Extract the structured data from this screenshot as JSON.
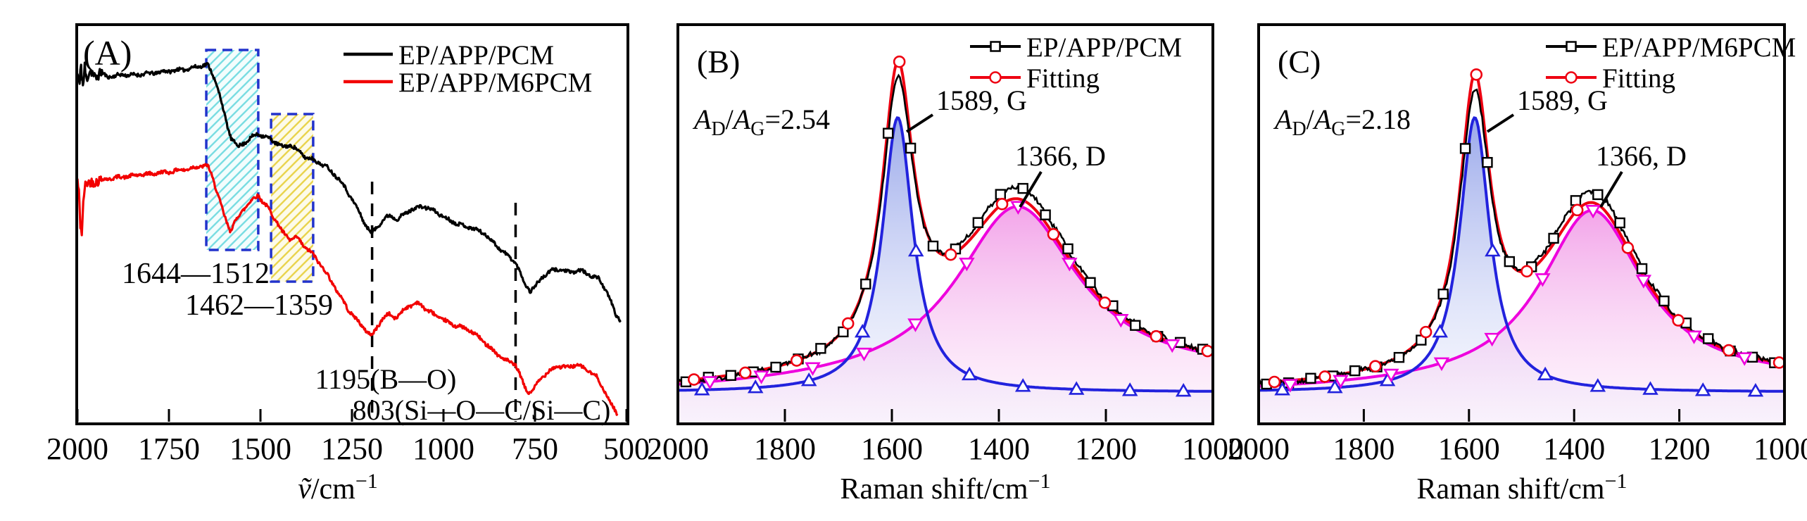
{
  "figure": {
    "description": "Three-panel spectroscopy figure: FTIR spectra (A) and Raman D/G band deconvolution (B, C)",
    "colors": {
      "black_series": "#000000",
      "red_series": "#f20000",
      "fitting_red": "#ee0011",
      "g_band_blue": "#2222dd",
      "d_band_magenta": "#ee00dd",
      "band_box_border": "#2233cc",
      "cyan_hatch": "#7adde2",
      "yellow_hatch": "#e9d44e"
    }
  },
  "chart_data": [
    {
      "panel": "A",
      "panel_label": "(A)",
      "type": "line",
      "x_label_parts": [
        "ṽ",
        "/cm",
        "−1"
      ],
      "x_ticks": [
        "2000",
        "1750",
        "1500",
        "1250",
        "1000",
        "750",
        "500"
      ],
      "x_range": [
        2000,
        500
      ],
      "y_axis": "transmittance, arbitrary units 0-100",
      "legend": [
        {
          "label": "EP/APP/PCM",
          "color": "#000000"
        },
        {
          "label": "EP/APP/M6PCM",
          "color": "#f20000"
        }
      ],
      "annotations": [
        {
          "text": "1644—1512"
        },
        {
          "text": "1462—1359"
        },
        {
          "text": "1195(B—O)"
        },
        {
          "text": "803(Si—O—C/Si—C)"
        }
      ],
      "highlight_bands": [
        {
          "from": 1648,
          "to": 1506,
          "style": "cyan-hatched"
        },
        {
          "from": 1471,
          "to": 1356,
          "style": "yellow-hatched"
        }
      ],
      "dashed_lines": [
        1195,
        803
      ],
      "series": [
        {
          "name": "EP/APP/PCM",
          "color": "#000000",
          "points": [
            [
              2000,
              87.7
            ],
            [
              1994,
              85.0
            ],
            [
              1990,
              90.0
            ],
            [
              1985,
              84.5
            ],
            [
              1980,
              89.0
            ],
            [
              1975,
              86.0
            ],
            [
              1965,
              88.5
            ],
            [
              1950,
              86.8
            ],
            [
              1935,
              88.0
            ],
            [
              1920,
              87.0
            ],
            [
              1900,
              87.1
            ],
            [
              1875,
              87.5
            ],
            [
              1850,
              87.3
            ],
            [
              1825,
              87.6
            ],
            [
              1800,
              87.8
            ],
            [
              1775,
              88.1
            ],
            [
              1750,
              88.4
            ],
            [
              1725,
              88.6
            ],
            [
              1700,
              88.9
            ],
            [
              1680,
              89.3
            ],
            [
              1660,
              89.8
            ],
            [
              1644,
              89.9
            ],
            [
              1630,
              87.5
            ],
            [
              1620,
              85.0
            ],
            [
              1610,
              82.0
            ],
            [
              1600,
              78.0
            ],
            [
              1590,
              74.5
            ],
            [
              1580,
              71.6
            ],
            [
              1570,
              70.4
            ],
            [
              1560,
              69.5
            ],
            [
              1550,
              70.0
            ],
            [
              1540,
              70.7
            ],
            [
              1530,
              71.3
            ],
            [
              1520,
              72.0
            ],
            [
              1512,
              72.4
            ],
            [
              1505,
              72.7
            ],
            [
              1495,
              72.2
            ],
            [
              1480,
              71.6
            ],
            [
              1470,
              71.2
            ],
            [
              1462,
              70.7
            ],
            [
              1450,
              70.0
            ],
            [
              1440,
              69.3
            ],
            [
              1428,
              69.6
            ],
            [
              1415,
              69.8
            ],
            [
              1405,
              69.0
            ],
            [
              1395,
              68.1
            ],
            [
              1385,
              67.5
            ],
            [
              1380,
              67.0
            ],
            [
              1370,
              66.6
            ],
            [
              1359,
              66.3
            ],
            [
              1340,
              65.4
            ],
            [
              1320,
              64.4
            ],
            [
              1300,
              62.7
            ],
            [
              1280,
              60.8
            ],
            [
              1260,
              57.9
            ],
            [
              1240,
              54.7
            ],
            [
              1225,
              52.0
            ],
            [
              1210,
              49.4
            ],
            [
              1200,
              48.2
            ],
            [
              1195,
              47.8
            ],
            [
              1185,
              48.9
            ],
            [
              1170,
              50.6
            ],
            [
              1158,
              51.6
            ],
            [
              1145,
              52.2
            ],
            [
              1135,
              51.7
            ],
            [
              1125,
              51.3
            ],
            [
              1110,
              52.3
            ],
            [
              1090,
              53.6
            ],
            [
              1070,
              54.2
            ],
            [
              1055,
              54.5
            ],
            [
              1040,
              53.9
            ],
            [
              1020,
              53.1
            ],
            [
              1005,
              52.2
            ],
            [
              990,
              51.3
            ],
            [
              970,
              50.5
            ],
            [
              955,
              49.9
            ],
            [
              935,
              49.4
            ],
            [
              920,
              49.0
            ],
            [
              905,
              48.4
            ],
            [
              890,
              47.8
            ],
            [
              875,
              46.5
            ],
            [
              860,
              45.1
            ],
            [
              845,
              43.8
            ],
            [
              830,
              42.5
            ],
            [
              815,
              41.4
            ],
            [
              803,
              40.4
            ],
            [
              790,
              37.8
            ],
            [
              780,
              35.4
            ],
            [
              770,
              34.2
            ],
            [
              763,
              33.3
            ],
            [
              755,
              34.0
            ],
            [
              748,
              34.6
            ],
            [
              738,
              35.8
            ],
            [
              728,
              36.9
            ],
            [
              715,
              37.7
            ],
            [
              705,
              38.3
            ],
            [
              695,
              38.6
            ],
            [
              685,
              38.8
            ],
            [
              670,
              38.3
            ],
            [
              655,
              37.9
            ],
            [
              640,
              38.2
            ],
            [
              625,
              38.4
            ],
            [
              612,
              37.8
            ],
            [
              600,
              37.2
            ],
            [
              588,
              36.8
            ],
            [
              575,
              36.3
            ],
            [
              562,
              34.5
            ],
            [
              550,
              32.1
            ],
            [
              540,
              30.0
            ],
            [
              530,
              27.5
            ],
            [
              522,
              26.5
            ],
            [
              515,
              25.9
            ]
          ]
        },
        {
          "name": "EP/APP/M6PCM",
          "color": "#f20000",
          "points": [
            [
              2000,
              61.2
            ],
            [
              1996,
              58.0
            ],
            [
              1992,
              50.0
            ],
            [
              1988,
              48.0
            ],
            [
              1984,
              55.0
            ],
            [
              1980,
              59.5
            ],
            [
              1975,
              60.0
            ],
            [
              1965,
              60.5
            ],
            [
              1950,
              60.8
            ],
            [
              1930,
              61.2
            ],
            [
              1900,
              61.6
            ],
            [
              1875,
              61.9
            ],
            [
              1850,
              62.1
            ],
            [
              1825,
              62.4
            ],
            [
              1800,
              62.6
            ],
            [
              1775,
              62.9
            ],
            [
              1750,
              63.1
            ],
            [
              1725,
              63.5
            ],
            [
              1700,
              63.8
            ],
            [
              1680,
              64.2
            ],
            [
              1660,
              64.6
            ],
            [
              1644,
              64.6
            ],
            [
              1632,
              62.0
            ],
            [
              1620,
              58.6
            ],
            [
              1610,
              55.5
            ],
            [
              1600,
              52.4
            ],
            [
              1592,
              50.4
            ],
            [
              1583,
              48.5
            ],
            [
              1573,
              50.0
            ],
            [
              1563,
              51.5
            ],
            [
              1550,
              53.3
            ],
            [
              1535,
              55.0
            ],
            [
              1520,
              56.3
            ],
            [
              1512,
              56.9
            ],
            [
              1506,
              57.3
            ],
            [
              1495,
              55.8
            ],
            [
              1480,
              54.1
            ],
            [
              1470,
              52.8
            ],
            [
              1462,
              51.5
            ],
            [
              1450,
              49.8
            ],
            [
              1440,
              48.0
            ],
            [
              1430,
              47.1
            ],
            [
              1420,
              46.2
            ],
            [
              1410,
              46.4
            ],
            [
              1400,
              46.6
            ],
            [
              1390,
              45.5
            ],
            [
              1380,
              44.4
            ],
            [
              1370,
              43.6
            ],
            [
              1359,
              42.7
            ],
            [
              1345,
              41.0
            ],
            [
              1330,
              39.2
            ],
            [
              1315,
              37.0
            ],
            [
              1300,
              34.7
            ],
            [
              1280,
              31.7
            ],
            [
              1260,
              28.6
            ],
            [
              1240,
              26.4
            ],
            [
              1220,
              24.2
            ],
            [
              1207,
              23.0
            ],
            [
              1195,
              22.0
            ],
            [
              1183,
              24.0
            ],
            [
              1170,
              25.9
            ],
            [
              1160,
              26.8
            ],
            [
              1150,
              27.5
            ],
            [
              1140,
              27.0
            ],
            [
              1130,
              26.5
            ],
            [
              1115,
              27.9
            ],
            [
              1100,
              29.3
            ],
            [
              1085,
              29.8
            ],
            [
              1070,
              30.3
            ],
            [
              1055,
              29.3
            ],
            [
              1040,
              28.2
            ],
            [
              1025,
              27.4
            ],
            [
              1010,
              26.5
            ],
            [
              995,
              25.8
            ],
            [
              980,
              25.0
            ],
            [
              965,
              24.6
            ],
            [
              950,
              24.2
            ],
            [
              935,
              23.6
            ],
            [
              920,
              22.9
            ],
            [
              905,
              21.8
            ],
            [
              890,
              20.6
            ],
            [
              875,
              19.3
            ],
            [
              860,
              18.0
            ],
            [
              845,
              16.9
            ],
            [
              830,
              15.9
            ],
            [
              815,
              15.3
            ],
            [
              803,
              14.8
            ],
            [
              790,
              12.0
            ],
            [
              780,
              9.5
            ],
            [
              772,
              8.2
            ],
            [
              765,
              7.8
            ],
            [
              757,
              8.5
            ],
            [
              750,
              9.2
            ],
            [
              740,
              10.5
            ],
            [
              730,
              11.8
            ],
            [
              720,
              12.6
            ],
            [
              710,
              13.4
            ],
            [
              700,
              13.8
            ],
            [
              690,
              14.5
            ],
            [
              675,
              14.3
            ],
            [
              660,
              14.1
            ],
            [
              650,
              14.5
            ],
            [
              640,
              14.8
            ],
            [
              630,
              14.5
            ],
            [
              620,
              14.1
            ],
            [
              610,
              13.6
            ],
            [
              600,
              13.1
            ],
            [
              590,
              12.3
            ],
            [
              580,
              11.6
            ],
            [
              570,
              9.9
            ],
            [
              560,
              8.1
            ],
            [
              550,
              6.4
            ],
            [
              540,
              4.6
            ],
            [
              532,
              3.5
            ],
            [
              525,
              2.5
            ]
          ]
        }
      ]
    },
    {
      "panel": "B",
      "panel_label": "(B)",
      "type": "line",
      "x_label_parts": [
        "Raman shift/cm",
        "−1"
      ],
      "x_ticks": [
        "2000",
        "1800",
        "1600",
        "1400",
        "1200",
        "1000"
      ],
      "x_range": [
        2000,
        1000
      ],
      "ratio_parts": [
        "A",
        "D",
        "/",
        "A",
        "G",
        "=2.54"
      ],
      "ratio_value": 2.54,
      "legend": [
        {
          "label": "EP/APP/PCM",
          "marker": "square",
          "color": "#000000"
        },
        {
          "label": "Fitting",
          "marker": "circle",
          "color": "#ee0011"
        }
      ],
      "peak_annotations": [
        {
          "text": "1589, G"
        },
        {
          "text": "1366, D"
        }
      ],
      "baseline_au": 7.9,
      "background_au_at_right": 4,
      "peaks": [
        {
          "name": "G",
          "center": 1589,
          "amplitude_au": 68.8,
          "gamma_cm": 35,
          "color": "#2222dd",
          "marker": "triangle-up"
        },
        {
          "name": "D",
          "center": 1366,
          "amplitude_au": 44,
          "gamma_cm": 139,
          "color": "#ee00dd",
          "marker": "triangle-down"
        }
      ],
      "experimental_scale": {
        "g": 0.94,
        "d": 1.07
      }
    },
    {
      "panel": "C",
      "panel_label": "(C)",
      "type": "line",
      "x_label_parts": [
        "Raman shift/cm",
        "−1"
      ],
      "x_ticks": [
        "2000",
        "1800",
        "1600",
        "1400",
        "1200",
        "1000"
      ],
      "x_range": [
        2000,
        1000
      ],
      "ratio_parts": [
        "A",
        "D",
        "/",
        "A",
        "G",
        "=2.18"
      ],
      "ratio_value": 2.18,
      "legend": [
        {
          "label": "EP/APP/M6PCM",
          "marker": "square",
          "color": "#000000"
        },
        {
          "label": "Fitting",
          "marker": "circle",
          "color": "#ee0011"
        }
      ],
      "peak_annotations": [
        {
          "text": "1589, G"
        },
        {
          "text": "1366, D"
        }
      ],
      "baseline_au": 7.9,
      "background_au_at_right": 2.5,
      "peaks": [
        {
          "name": "G",
          "center": 1589,
          "amplitude_au": 68.8,
          "gamma_cm": 35,
          "color": "#2222dd",
          "marker": "triangle-up"
        },
        {
          "name": "D",
          "center": 1366,
          "amplitude_au": 44,
          "gamma_cm": 119,
          "color": "#ee00dd",
          "marker": "triangle-down"
        }
      ],
      "experimental_scale": {
        "g": 0.94,
        "d": 1.07
      }
    }
  ]
}
